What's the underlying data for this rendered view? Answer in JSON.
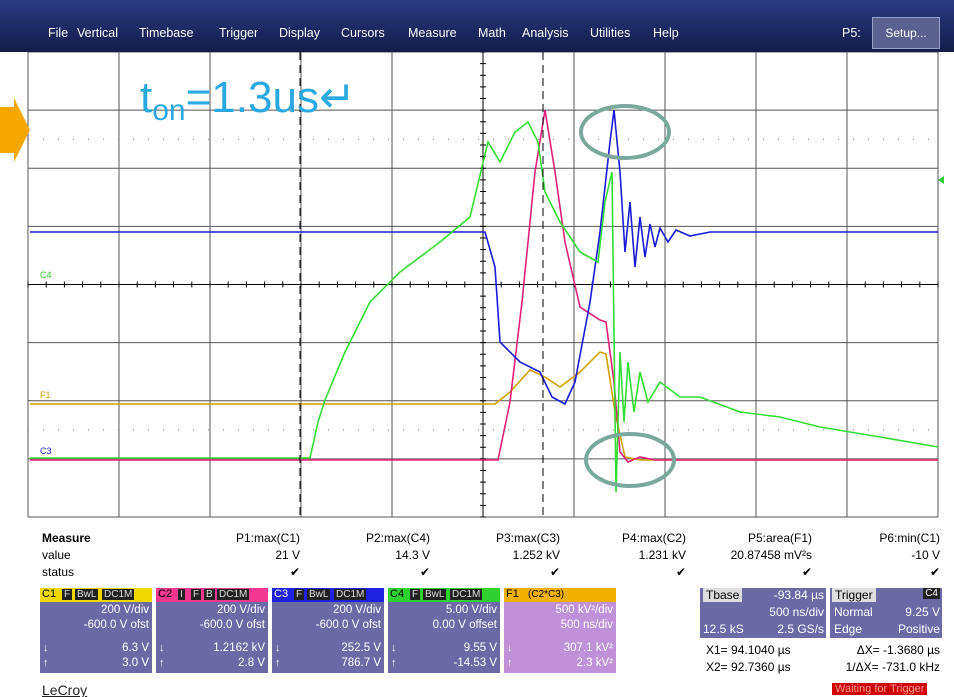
{
  "menu": {
    "items": [
      "File",
      "Vertical",
      "Timebase",
      "Trigger",
      "Display",
      "Cursors",
      "Measure",
      "Math",
      "Analysis",
      "Utilities",
      "Help"
    ],
    "p5_label": "P5:",
    "setup": "Setup..."
  },
  "annotation": {
    "t": "t",
    "sub": "on",
    "rest": "=1.3us↵"
  },
  "grid_labels": [
    "C4",
    "F1",
    "C3"
  ],
  "measure": {
    "title": "Measure",
    "row_labels": [
      "value",
      "status"
    ],
    "columns": [
      {
        "name": "P1:max(C1)",
        "value": "21 V",
        "status": "✔"
      },
      {
        "name": "P2:max(C4)",
        "value": "14.3 V",
        "status": "✔"
      },
      {
        "name": "P3:max(C3)",
        "value": "1.252 kV",
        "status": "✔"
      },
      {
        "name": "P4:max(C2)",
        "value": "1.231 kV",
        "status": "✔"
      },
      {
        "name": "P5:area(F1)",
        "value": "20.87458 mV²s",
        "status": "✔"
      },
      {
        "name": "P6:min(C1)",
        "value": "-10 V",
        "status": "✔"
      }
    ]
  },
  "cursor_arrows": [
    "↓",
    "↑"
  ],
  "channels": [
    {
      "name": "C1",
      "tags": [
        "F",
        "BwL",
        "DC1M"
      ],
      "vdiv": "200 V/div",
      "offset": "-600.0 V ofst",
      "low": "6.3 V",
      "high": "3.0 V"
    },
    {
      "name": "C2",
      "tags": [
        "I",
        "F",
        "B",
        "DC1M"
      ],
      "vdiv": "200 V/div",
      "offset": "-600.0 V ofst",
      "low": "1.2162 kV",
      "high": "2.8 V"
    },
    {
      "name": "C3",
      "tags": [
        "F",
        "BwL",
        "DC1M"
      ],
      "vdiv": "200 V/div",
      "offset": "-600.0 V ofst",
      "low": "252.5 V",
      "high": "786.7 V"
    },
    {
      "name": "C4",
      "tags": [
        "F",
        "BwL",
        "DC1M"
      ],
      "vdiv": "5.00 V/div",
      "offset": "0.00 V offset",
      "low": "9.55 V",
      "high": "-14.53 V"
    },
    {
      "name": "F1",
      "tags": [
        "(C2*C3)"
      ],
      "vdiv": "500 kV²/div",
      "offset": "500 ns/div",
      "low": "307.1 kV²",
      "high": "2.3 kV²"
    }
  ],
  "timebase": {
    "label": "Tbase",
    "delay": "-93.84 µs",
    "tdiv": "500 ns/div",
    "samples": "12.5 kS",
    "rate": "2.5 GS/s"
  },
  "trigger": {
    "label": "Trigger",
    "source": "C4",
    "mode": "Normal",
    "level": "9.25 V",
    "type": "Edge",
    "slope": "Positive"
  },
  "cursors": {
    "x1": "X1= 94.1040 µs",
    "dx": "ΔX= -1.3680 µs",
    "x2": "X2= 92.7360 µs",
    "inv_dx": "1/ΔX= -731.0 kHz"
  },
  "brand": "LeCroy",
  "status": "Waiting for Trigger"
}
